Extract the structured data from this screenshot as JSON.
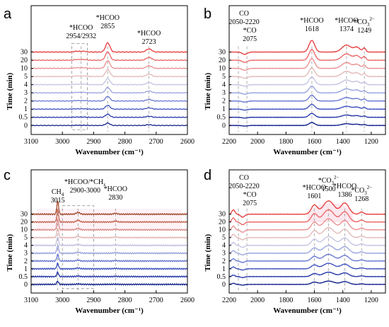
{
  "figure": {
    "panels_order": [
      "a",
      "b",
      "c",
      "d"
    ]
  },
  "colors": {
    "series_palette": [
      "#0f1d8a",
      "#2233a6",
      "#3a4dbd",
      "#6676cf",
      "#98a2dd",
      "#c3c2e2",
      "#e3b7b7",
      "#ea8d8d",
      "#e96464",
      "#e63a3a",
      "#e31a1a"
    ],
    "series_palette_c": [
      "#0f1d8a",
      "#2233a6",
      "#3a4dbd",
      "#6676cf",
      "#98a2dd",
      "#c3c2e2",
      "#e3b7b7",
      "#d98a85",
      "#c4644f",
      "#a2472c",
      "#7a2e15"
    ],
    "annotation_line": "#9a9a9a",
    "band_fill": "#fbe7ee"
  },
  "chart_data": [
    {
      "panel": "a",
      "type": "line",
      "xlabel": "Wavenumber (cm⁻¹)",
      "ylabel": "Time (min)",
      "xlim": [
        3100,
        2600
      ],
      "x_ticks": [
        "3100",
        "3000",
        "2900",
        "2800",
        "2700",
        "2600"
      ],
      "y_tick_labels": [
        "0",
        "0.5",
        "1",
        "2",
        "3",
        "4",
        "5",
        "10",
        "20",
        "30"
      ],
      "series": [
        {
          "name": "0"
        },
        {
          "name": "0.5"
        },
        {
          "name": "1"
        },
        {
          "name": "2"
        },
        {
          "name": "3"
        },
        {
          "name": "4"
        },
        {
          "name": "5"
        },
        {
          "name": "10"
        },
        {
          "name": "20"
        },
        {
          "name": "30"
        }
      ],
      "peaks": [
        {
          "x": 2954,
          "height": 0.05,
          "width": 12
        },
        {
          "x": 2932,
          "height": 0.05,
          "width": 12
        },
        {
          "x": 2855,
          "height": 0.6,
          "width": 10
        },
        {
          "x": 2723,
          "height": 0.2,
          "width": 12
        }
      ],
      "annotations": [
        {
          "text": "*HCOO",
          "text2": "2954/2932",
          "x": 2940
        },
        {
          "text": "*HCOO",
          "text2": "2855",
          "x": 2855
        },
        {
          "text": "*HCOO",
          "text2": "2723",
          "x": 2723
        }
      ],
      "box": [
        2970,
        2920
      ]
    },
    {
      "panel": "b",
      "type": "line",
      "xlabel": "Wavenumber (cm⁻¹)",
      "ylabel": "Time (min)",
      "xlim": [
        2200,
        1100
      ],
      "x_ticks": [
        "2200",
        "2000",
        "1800",
        "1600",
        "1400",
        "1200"
      ],
      "y_tick_labels": [
        "0",
        "0.5",
        "1",
        "2",
        "3",
        "4",
        "5",
        "10",
        "20",
        "30"
      ],
      "series": [
        {
          "name": "0"
        },
        {
          "name": "0.5"
        },
        {
          "name": "1"
        },
        {
          "name": "2"
        },
        {
          "name": "3"
        },
        {
          "name": "4"
        },
        {
          "name": "5"
        },
        {
          "name": "10"
        },
        {
          "name": "20"
        },
        {
          "name": "30"
        }
      ],
      "peaks": [
        {
          "x": 2090,
          "height": -0.15,
          "width": 25
        },
        {
          "x": 1618,
          "height": 0.75,
          "width": 28
        },
        {
          "x": 1374,
          "height": 0.45,
          "width": 45
        },
        {
          "x": 1300,
          "height": 0.3,
          "width": 30
        },
        {
          "x": 1249,
          "height": 0.25,
          "width": 15
        }
      ],
      "annotations": [
        {
          "text": "CO",
          "text2": "2050-2220",
          "x": 2135
        },
        {
          "text": "*CO",
          "text2": "2075",
          "x": 2075
        },
        {
          "text": "*HCOO",
          "text2": "1618",
          "x": 1618
        },
        {
          "text": "*HCOO",
          "text2": "1374",
          "x": 1374
        },
        {
          "text": "*CO",
          "sub": "3",
          "sup": "2−",
          "text2": "1249",
          "x": 1249
        }
      ]
    },
    {
      "panel": "c",
      "type": "line",
      "xlabel": "Wavenumber (cm⁻¹)",
      "ylabel": "Time (min)",
      "xlim": [
        3100,
        2600
      ],
      "x_ticks": [
        "3100",
        "3000",
        "2900",
        "2800",
        "2700",
        "2600"
      ],
      "y_tick_labels": [
        "0",
        "0.5",
        "1",
        "2",
        "3",
        "4",
        "5",
        "10",
        "20",
        "30"
      ],
      "series": [
        {
          "name": "0"
        },
        {
          "name": "0.5"
        },
        {
          "name": "1"
        },
        {
          "name": "2"
        },
        {
          "name": "3"
        },
        {
          "name": "4"
        },
        {
          "name": "5"
        },
        {
          "name": "10"
        },
        {
          "name": "20"
        },
        {
          "name": "30"
        }
      ],
      "peaks": [
        {
          "x": 3015,
          "height": 0.9,
          "width": 4
        },
        {
          "x": 2950,
          "height": 0.12,
          "width": 8
        },
        {
          "x": 2830,
          "height": 0.06,
          "width": 8
        }
      ],
      "annotations": [
        {
          "text": "CH",
          "sub": "4",
          "text2": "3015",
          "x": 3015
        },
        {
          "text": "*HCOO/*CH",
          "sub": "x",
          "text2": "2900-3000",
          "x": 2950
        },
        {
          "text": "*HCOO",
          "text2": "2830",
          "x": 2830
        }
      ],
      "box": [
        3000,
        2900
      ]
    },
    {
      "panel": "d",
      "type": "line",
      "xlabel": "Wavenumber (cm⁻¹)",
      "ylabel": "Time (min)",
      "xlim": [
        2200,
        1100
      ],
      "x_ticks": [
        "2200",
        "2000",
        "1800",
        "1600",
        "1400",
        "1200"
      ],
      "y_tick_labels": [
        "0",
        "0.5",
        "1",
        "2",
        "3",
        "4",
        "5",
        "10",
        "20",
        "30"
      ],
      "series": [
        {
          "name": "0"
        },
        {
          "name": "0.5"
        },
        {
          "name": "1"
        },
        {
          "name": "2"
        },
        {
          "name": "3"
        },
        {
          "name": "4"
        },
        {
          "name": "5"
        },
        {
          "name": "10"
        },
        {
          "name": "20"
        },
        {
          "name": "30"
        }
      ],
      "peaks": [
        {
          "x": 2170,
          "height": 0.3,
          "width": 15
        },
        {
          "x": 2105,
          "height": -0.2,
          "width": 20
        },
        {
          "x": 1601,
          "height": 0.6,
          "width": 30
        },
        {
          "x": 1500,
          "height": 0.9,
          "width": 55
        },
        {
          "x": 1386,
          "height": 0.75,
          "width": 40
        },
        {
          "x": 1268,
          "height": 0.15,
          "width": 20
        }
      ],
      "annotations": [
        {
          "text": "CO",
          "text2": "2050-2220",
          "x": 2135
        },
        {
          "text": "*CO",
          "text2": "2075",
          "x": 2075
        },
        {
          "text": "*HCOO",
          "text2": "1601",
          "x": 1601
        },
        {
          "text": "*CO",
          "sub": "3",
          "sup": "2−",
          "text2": "1500",
          "x": 1500
        },
        {
          "text": "*HCOO",
          "text2": "1386",
          "x": 1386
        },
        {
          "text": "*CO",
          "sub": "3",
          "sup": "2−",
          "text2": "1268",
          "x": 1268
        }
      ]
    }
  ]
}
